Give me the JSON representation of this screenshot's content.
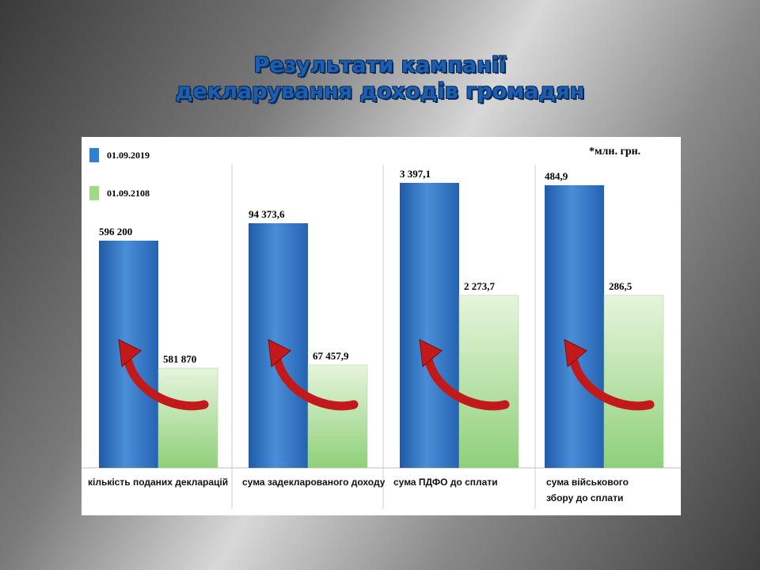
{
  "title": {
    "line1": "Результати кампанії",
    "line2": "декларування доходів громадян"
  },
  "colors": {
    "series1": "#2f6fbd",
    "series2": "#b9e3a3",
    "arrow": "#c21a1a",
    "title": "#1a5fb4"
  },
  "chart_data": {
    "type": "bar",
    "unit_note": "*млн. грн.",
    "categories": [
      [
        "кількість  поданих декларацій"
      ],
      [
        "сума задекларованого доходу"
      ],
      [
        "сума ПДФО до сплати"
      ],
      [
        "сума військового",
        "збору до сплати"
      ]
    ],
    "series": [
      {
        "name": "01.09.2019",
        "labels": [
          "596 200",
          "94 373,6",
          "3 397,1",
          "484,9"
        ],
        "values": [
          596200,
          94373.6,
          3397.1,
          484.9
        ],
        "color": "#2f6fbd"
      },
      {
        "name": "01.09.2108",
        "labels": [
          "581 870",
          "67 457,9",
          "2 273,7",
          "286,5"
        ],
        "values": [
          581870,
          67457.9,
          2273.7,
          286.5
        ],
        "color": "#b9e3a3"
      }
    ],
    "legend": "top-left",
    "annotation": "red curved arrow in each group pointing from the 2018 bar to the 2019 bar"
  }
}
